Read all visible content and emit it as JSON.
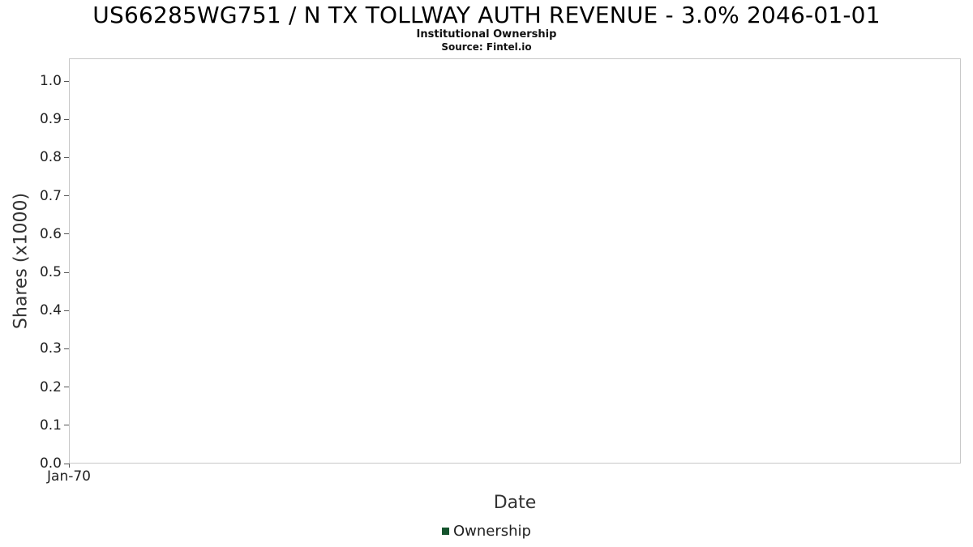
{
  "header": {
    "title": "US66285WG751 / N TX TOLLWAY AUTH REVENUE - 3.0% 2046-01-01",
    "subtitle": "Institutional Ownership",
    "source": "Source: Fintel.io"
  },
  "chart_data": {
    "type": "line",
    "title": "US66285WG751 / N TX TOLLWAY AUTH REVENUE - 3.0% 2046-01-01",
    "subtitle": "Institutional Ownership",
    "source": "Source: Fintel.io",
    "xlabel": "Date",
    "ylabel": "Shares (x1000)",
    "ylim": [
      0.0,
      1.0
    ],
    "y_ticks": [
      "1.0",
      "0.9",
      "0.8",
      "0.7",
      "0.6",
      "0.5",
      "0.4",
      "0.3",
      "0.2",
      "0.1",
      "0.0"
    ],
    "x_ticks": [
      "Jan-70"
    ],
    "grid": false,
    "series": [
      {
        "name": "Ownership",
        "color": "#14532d",
        "x": [],
        "values": []
      }
    ],
    "legend": {
      "position": "bottom",
      "entries": [
        {
          "label": "Ownership",
          "color": "#14532d"
        }
      ]
    }
  }
}
